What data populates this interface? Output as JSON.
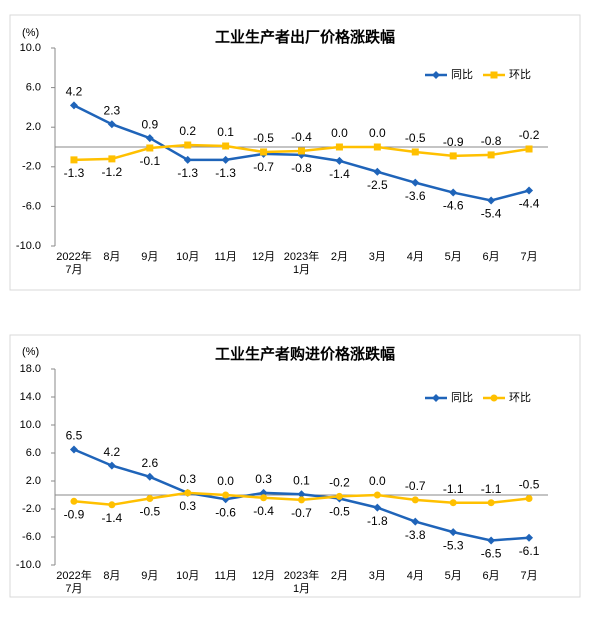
{
  "chart_data": [
    {
      "type": "line",
      "title": "工业生产者出厂价格涨跌幅",
      "y_label": "(%)",
      "categories": [
        "2022年\n7月",
        "8月",
        "9月",
        "10月",
        "11月",
        "12月",
        "2023年\n1月",
        "2月",
        "3月",
        "4月",
        "5月",
        "6月",
        "7月"
      ],
      "ylim": [
        -10,
        10
      ],
      "yticks": [
        {
          "value": 10,
          "label": "10.0"
        },
        {
          "value": 6,
          "label": "6.0"
        },
        {
          "value": 2,
          "label": "2.0"
        },
        {
          "value": -2,
          "label": "-2.0"
        },
        {
          "value": -6,
          "label": "-6.0"
        },
        {
          "value": -10,
          "label": "-10.0"
        }
      ],
      "legend": "upper right",
      "series": [
        {
          "name": "同比",
          "color": "#1f64b9",
          "marker": "diamond",
          "values": [
            4.2,
            2.3,
            0.9,
            -1.3,
            -1.3,
            -0.7,
            -0.8,
            -1.4,
            -2.5,
            -3.6,
            -4.6,
            -5.4,
            -4.4
          ],
          "value_labels": [
            "4.2",
            "2.3",
            "0.9",
            "-1.3",
            "-1.3",
            "-0.7",
            "-0.8",
            "-1.4",
            "-2.5",
            "-3.6",
            "-4.6",
            "-5.4",
            "-4.4"
          ]
        },
        {
          "name": "环比",
          "color": "#ffc000",
          "marker": "square",
          "values": [
            -1.3,
            -1.2,
            -0.1,
            0.2,
            0.1,
            -0.5,
            -0.4,
            0.0,
            0.0,
            -0.5,
            -0.9,
            -0.8,
            -0.2
          ],
          "value_labels": [
            "-1.3",
            "-1.2",
            "-0.1",
            "0.2",
            "0.1",
            "-0.5",
            "-0.4",
            "0.0",
            "0.0",
            "-0.5",
            "-0.9",
            "-0.8",
            "-0.2"
          ]
        }
      ]
    },
    {
      "type": "line",
      "title": "工业生产者购进价格涨跌幅",
      "y_label": "(%)",
      "categories": [
        "2022年\n7月",
        "8月",
        "9月",
        "10月",
        "11月",
        "12月",
        "2023年\n1月",
        "2月",
        "3月",
        "4月",
        "5月",
        "6月",
        "7月"
      ],
      "ylim": [
        -10,
        18
      ],
      "yticks": [
        {
          "value": 18,
          "label": "18.0"
        },
        {
          "value": 14,
          "label": "14.0"
        },
        {
          "value": 10,
          "label": "10.0"
        },
        {
          "value": 6,
          "label": "6.0"
        },
        {
          "value": 2,
          "label": "2.0"
        },
        {
          "value": -2,
          "label": "-2.0"
        },
        {
          "value": -6,
          "label": "-6.0"
        },
        {
          "value": -10,
          "label": "-10.0"
        }
      ],
      "legend": "upper right",
      "series": [
        {
          "name": "同比",
          "color": "#1f64b9",
          "marker": "diamond",
          "values": [
            6.5,
            4.2,
            2.6,
            0.3,
            -0.6,
            0.3,
            0.1,
            -0.5,
            -1.8,
            -3.8,
            -5.3,
            -6.5,
            -6.1
          ],
          "value_labels": [
            "6.5",
            "4.2",
            "2.6",
            "0.3",
            "-0.6",
            "0.3",
            "0.1",
            "-0.5",
            "-1.8",
            "-3.8",
            "-5.3",
            "-6.5",
            "-6.1"
          ]
        },
        {
          "name": "环比",
          "color": "#ffc000",
          "marker": "circle",
          "values": [
            -0.9,
            -1.4,
            -0.5,
            0.3,
            0.0,
            -0.4,
            -0.7,
            -0.2,
            0.0,
            -0.7,
            -1.1,
            -1.1,
            -0.5
          ],
          "value_labels": [
            "-0.9",
            "-1.4",
            "-0.5",
            "0.3",
            "0.0",
            "-0.4",
            "-0.7",
            "-0.2",
            "0.0",
            "-0.7",
            "-1.1",
            "-1.1",
            "-0.5"
          ]
        }
      ]
    }
  ]
}
